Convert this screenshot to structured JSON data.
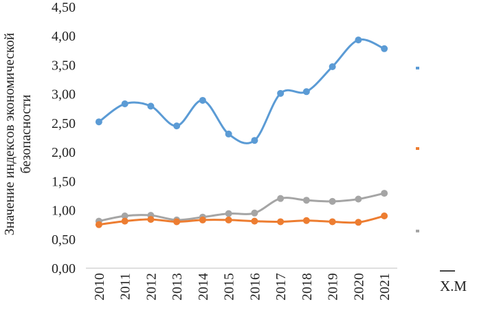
{
  "chart_data": {
    "type": "line",
    "ylabel_lines": [
      "Значение индексов экономической",
      "безопасности"
    ],
    "categories": [
      "2010",
      "2011",
      "2012",
      "2013",
      "2014",
      "2015",
      "2016",
      "2017",
      "2018",
      "2019",
      "2020",
      "2021"
    ],
    "y_ticks": [
      "0,00",
      "0,50",
      "1,00",
      "1,50",
      "2,00",
      "2,50",
      "3,00",
      "3,50",
      "4,00",
      "4,50"
    ],
    "ylim": [
      0,
      4.5
    ],
    "grid": false,
    "legend": "right (cropped)",
    "series": [
      {
        "color": "#5b9bd5",
        "values": [
          2.52,
          2.83,
          2.79,
          2.45,
          2.89,
          2.31,
          2.2,
          3.01,
          3.04,
          3.47,
          3.93,
          3.78
        ]
      },
      {
        "color": "#ed7d31",
        "values": [
          0.75,
          0.81,
          0.84,
          0.8,
          0.83,
          0.83,
          0.81,
          0.8,
          0.82,
          0.8,
          0.79,
          0.9
        ]
      },
      {
        "color": "#a5a5a5",
        "values": [
          0.81,
          0.9,
          0.91,
          0.83,
          0.88,
          0.94,
          0.95,
          1.2,
          1.17,
          1.15,
          1.19,
          1.29
        ]
      }
    ],
    "legend_markers": [
      "#5b9bd5",
      "#ed7d31",
      "#a5a5a5"
    ],
    "cropped_caption": "Х.М"
  }
}
